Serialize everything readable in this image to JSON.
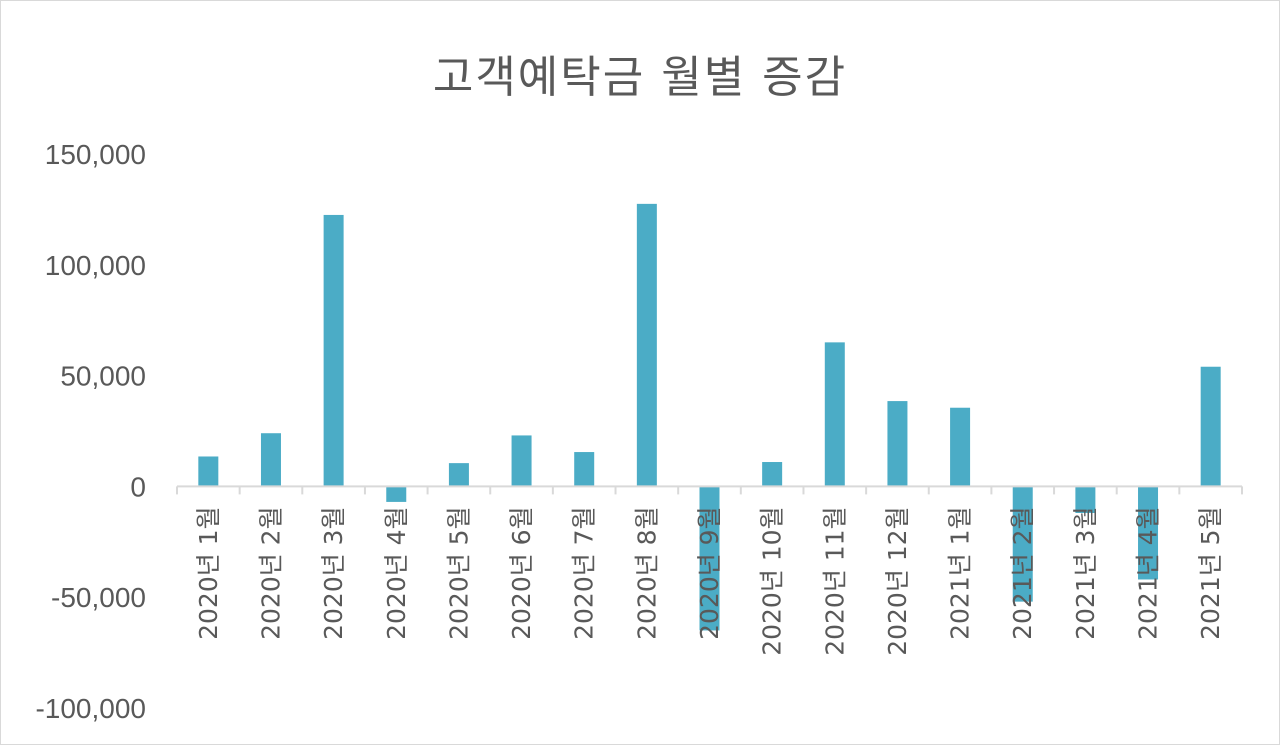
{
  "chart_data": {
    "type": "bar",
    "title": "고객예탁금 월별 증감",
    "xlabel": "",
    "ylabel": "",
    "ylim": [
      -100000,
      150000
    ],
    "yticks": [
      150000,
      100000,
      50000,
      0,
      -50000,
      -100000
    ],
    "ytick_labels": [
      "150,000",
      "100,000",
      "50,000",
      "0",
      "-50,000",
      "-100,000"
    ],
    "grid": false,
    "legend": "none",
    "bar_color": "#4BACC6",
    "categories": [
      "2020년 1월",
      "2020년 2월",
      "2020년 3월",
      "2020년 4월",
      "2020년 5월",
      "2020년 6월",
      "2020년 7월",
      "2020년 8월",
      "2020년 9월",
      "2020년 10월",
      "2020년 11월",
      "2020년 12월",
      "2021년 1월",
      "2021년 2월",
      "2021년 3월",
      "2021년 4월",
      "2021년 5월"
    ],
    "values": [
      13500,
      24000,
      122500,
      -7000,
      10500,
      23000,
      15500,
      127500,
      -65000,
      11000,
      65000,
      38500,
      35500,
      -52000,
      -12000,
      -42000,
      54000
    ]
  }
}
